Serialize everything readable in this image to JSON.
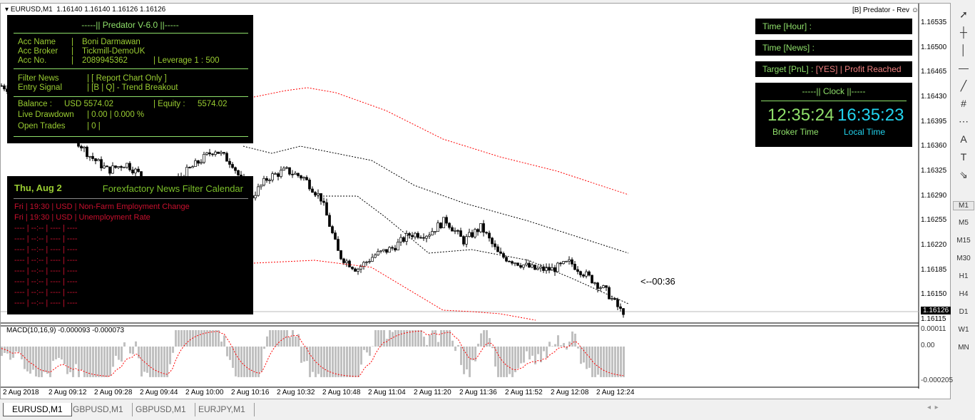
{
  "header": {
    "symbol": "EURUSD,M1",
    "ohlc": "1.16140 1.16140 1.16126 1.16126",
    "ea_label": "[B] Predator - Rev",
    "ea_icon": "smiley-icon"
  },
  "account": {
    "title": "-----|| Predator V-6.0 ||-----",
    "rows": [
      [
        "Acc Name",
        "|",
        "Boni Darmawan"
      ],
      [
        "Acc Broker",
        "|",
        "Tickmill-DemoUK"
      ],
      [
        "Acc No.",
        "|",
        "2089945362"
      ]
    ],
    "leverage": "|  Leverage  1 :  500",
    "filter_news": [
      "Filter News",
      "|  [ Report Chart Only ]"
    ],
    "entry_signal": [
      "Entry Signal",
      "|  [B | Q] - Trend Breakout"
    ],
    "balance": [
      "Balance  :",
      "USD 5574.02",
      "|  Equity  :",
      "5574.02"
    ],
    "drawdown": [
      "Live Drawdown",
      "|  0.00  |  0.000 %"
    ],
    "open_trades": [
      "Open Trades",
      "|  0  |"
    ]
  },
  "news": {
    "date": "Thu, Aug 2",
    "title": "Forexfactory News Filter Calendar",
    "events": [
      "Fri  |  19:30  |  USD  |  Non-Farm Employment Change",
      "Fri  |  19:30  |  USD  |  Unemployment Rate"
    ],
    "empty": [
      "----  |  --:--  |  ----  |  ----",
      "----  |  --:--  |  ----  |  ----",
      "----  |  --:--  |  ----  |  ----",
      "----  |  --:--  |  ----  |  ----",
      "----  |  --:--  |  ----  |  ----",
      "----  |  --:--  |  ----  |  ----",
      "----  |  --:--  |  ----  |  ----",
      "----  |  --:--  |  ----  |  ----"
    ]
  },
  "right_panels": {
    "time_hour": "Time [Hour]  :",
    "time_news": "Time [News]  :",
    "target": "Target [PnL]  :",
    "target_value": "[YES] | Profit Reached",
    "clock_title": "-----|| Clock ||-----",
    "broker_time": "12:35:24",
    "broker_label": "Broker Time",
    "local_time": "16:35:23",
    "local_label": "Local Time"
  },
  "countdown": "<--00:36",
  "price_axis": [
    "1.16535",
    "1.16500",
    "1.16465",
    "1.16430",
    "1.16395",
    "1.16360",
    "1.16325",
    "1.16290",
    "1.16255",
    "1.16220",
    "1.16185",
    "1.16150",
    "1.16115"
  ],
  "current_price": "1.16126",
  "macd": {
    "label": "MACD(10,16,9) -0.000093 -0.000073",
    "axis": [
      "0.00011",
      "0.00",
      "-0.000205"
    ]
  },
  "time_axis": [
    "2 Aug 2018",
    "2 Aug 09:12",
    "2 Aug 09:28",
    "2 Aug 09:44",
    "2 Aug 10:00",
    "2 Aug 10:16",
    "2 Aug 10:32",
    "2 Aug 10:48",
    "2 Aug 11:04",
    "2 Aug 11:20",
    "2 Aug 11:36",
    "2 Aug 11:52",
    "2 Aug 12:08",
    "2 Aug 12:24"
  ],
  "tabs": [
    "EURUSD,M1",
    "GBPUSD,M1",
    "GBPUSD,M1",
    "EURJPY,M1"
  ],
  "toolbar": [
    "cursor-icon",
    "crosshair-icon",
    "vertical-line-icon",
    "horizontal-line-icon",
    "trendline-icon",
    "fibonacci-icon",
    "fibo-fan-icon",
    "text-icon",
    "text-label-icon",
    "arrows-icon"
  ],
  "timeframes": [
    "M1",
    "M5",
    "M15",
    "M30",
    "H1",
    "H4",
    "D1",
    "W1",
    "MN"
  ],
  "price_path": [
    1.1645,
    1.1644,
    1.1641,
    1.164,
    1.1638,
    1.1635,
    1.1633,
    1.1634,
    1.1632,
    1.1628,
    1.1632,
    1.1634,
    1.1636,
    1.1634,
    1.1629,
    1.1632,
    1.1633,
    1.1632,
    1.1629,
    1.1621,
    1.1619,
    1.1621,
    1.1622,
    1.1624,
    1.1624,
    1.1626,
    1.1623,
    1.1625,
    1.1621,
    1.162,
    1.1619,
    1.1619,
    1.162,
    1.1618,
    1.1616,
    1.16126
  ],
  "colors": {
    "panel_bg": "#000000",
    "green": "#8fe06a",
    "news_red": "#c8102e",
    "clock_cyan": "#22d3ee",
    "band_red": "#ff0000",
    "macd_hist": "#c0c0c0"
  }
}
